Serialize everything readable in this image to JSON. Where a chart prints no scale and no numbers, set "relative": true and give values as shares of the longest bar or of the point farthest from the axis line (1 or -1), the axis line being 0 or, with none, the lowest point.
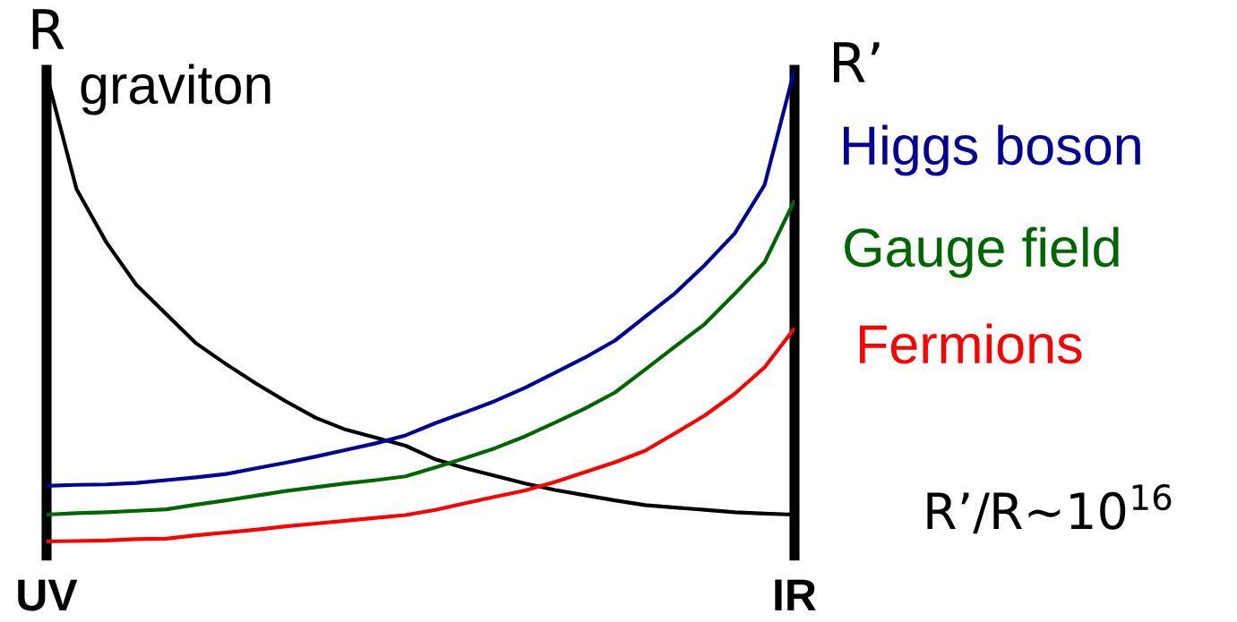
{
  "chart_data": {
    "type": "line",
    "relative": true,
    "legend": false,
    "marker": "none",
    "line_style": "solid",
    "categories": [
      "UV",
      null,
      null,
      null,
      null,
      null,
      null,
      null,
      null,
      null,
      null,
      null,
      null,
      null,
      null,
      null,
      null,
      null,
      null,
      null,
      null,
      null,
      null,
      null,
      null,
      "IR"
    ],
    "annotations": [
      "R",
      "R’",
      "R’/R∼10$^{16}$"
    ],
    "series": [
      {
        "name": "graviton",
        "color": "#000000",
        "values": [
          0.99,
          0.747,
          0.634,
          0.544,
          0.482,
          0.42,
          0.376,
          0.335,
          0.297,
          0.262,
          0.237,
          0.22,
          0.203,
          0.174,
          0.155,
          0.139,
          0.123,
          0.109,
          0.098,
          0.087,
          0.077,
          0.072,
          0.067,
          0.062,
          0.059,
          0.057
        ]
      },
      {
        "name": "Higgs boson",
        "color": "#000099",
        "values": [
          0.118,
          0.12,
          0.121,
          0.124,
          0.13,
          0.136,
          0.143,
          0.155,
          0.167,
          0.18,
          0.194,
          0.208,
          0.225,
          0.251,
          0.274,
          0.298,
          0.326,
          0.358,
          0.39,
          0.426,
          0.476,
          0.526,
          0.586,
          0.653,
          0.756,
          1.0
        ]
      },
      {
        "name": "Gauge field",
        "color": "#006600",
        "values": [
          0.057,
          0.06,
          0.062,
          0.065,
          0.068,
          0.078,
          0.087,
          0.097,
          0.107,
          0.115,
          0.123,
          0.13,
          0.138,
          0.157,
          0.177,
          0.198,
          0.223,
          0.252,
          0.282,
          0.316,
          0.364,
          0.413,
          0.461,
          0.525,
          0.592,
          0.723
        ]
      },
      {
        "name": "Fermions",
        "color": "#ff0000",
        "values": [
          0.0,
          0.001,
          0.002,
          0.005,
          0.006,
          0.013,
          0.019,
          0.025,
          0.032,
          0.038,
          0.044,
          0.05,
          0.056,
          0.067,
          0.081,
          0.095,
          0.108,
          0.126,
          0.147,
          0.168,
          0.192,
          0.229,
          0.267,
          0.313,
          0.369,
          0.452
        ]
      }
    ]
  }
}
